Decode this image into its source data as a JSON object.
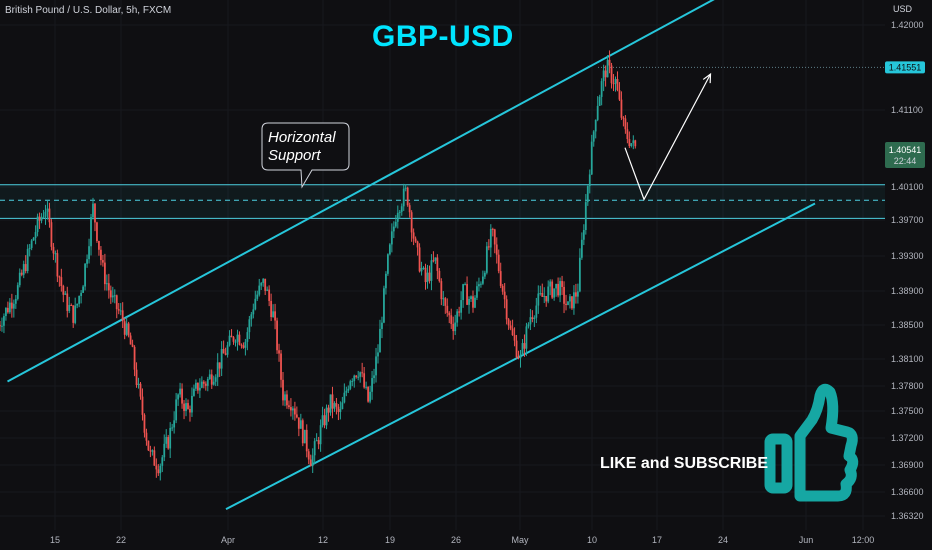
{
  "header": {
    "symbol": "British Pound / U.S. Dollar, 5h, FXCM",
    "title": "GBP-USD",
    "cta": "LIKE and SUBSCRIBE",
    "currency": "USD"
  },
  "annotation": {
    "line1": "Horizontal",
    "line2": "Support"
  },
  "thumb_icon": "thumbs-up-icon",
  "price_tags": {
    "high": "1.41551",
    "current": "1.40541",
    "timer": "22:44"
  },
  "colors": {
    "up": "#26a69a",
    "down": "#ef5350",
    "channel": "#26c6da",
    "support": "#4dd0e1",
    "background": "#0f0f12",
    "thumb": "#16a7a3",
    "title": "#00e5ff"
  },
  "chart_data": {
    "type": "candlestick",
    "symbol": "GBPUSD",
    "timeframe": "5h",
    "ylim": [
      1.3615,
      1.4225
    ],
    "y_ticks": [
      "1.42000",
      "1.41100",
      "1.40100",
      "1.39700",
      "1.39300",
      "1.38900",
      "1.38500",
      "1.38100",
      "1.37800",
      "1.37500",
      "1.37200",
      "1.36900",
      "1.36600",
      "1.36320"
    ],
    "x_ticks": [
      "15",
      "22",
      "Apr",
      "12",
      "19",
      "26",
      "May",
      "10",
      "17",
      "24",
      "Jun",
      "12:00"
    ],
    "support_zone": {
      "upper": 1.4013,
      "middle": 1.3994,
      "lower": 1.3972
    },
    "high_line": 1.41551,
    "current_price": 1.40541,
    "channel": {
      "upper": {
        "from": [
          "Mar 10",
          1.3785
        ],
        "to": [
          "May 27",
          1.4247
        ]
      },
      "lower": {
        "from": [
          "Apr 2",
          1.364
        ],
        "to": [
          "Jun 3",
          1.399
        ]
      }
    },
    "projection": [
      [
        "May 14",
        1.4061
      ],
      [
        "May 16",
        1.3995
      ],
      [
        "May 23",
        1.4148
      ]
    ],
    "price_path": [
      [
        "Mar 9",
        1.385
      ],
      [
        "Mar 11",
        1.389
      ],
      [
        "Mar 13",
        1.396
      ],
      [
        "Mar 14",
        1.3985
      ],
      [
        "Mar 15",
        1.393
      ],
      [
        "Mar 16",
        1.388
      ],
      [
        "Mar 17",
        1.386
      ],
      [
        "Mar 18",
        1.3905
      ],
      [
        "Mar 19",
        1.3985
      ],
      [
        "Mar 20",
        1.3915
      ],
      [
        "Mar 21",
        1.388
      ],
      [
        "Mar 22",
        1.386
      ],
      [
        "Mar 23",
        1.3825
      ],
      [
        "Mar 24",
        1.376
      ],
      [
        "Mar 25",
        1.37
      ],
      [
        "Mar 26",
        1.369
      ],
      [
        "Mar 27",
        1.372
      ],
      [
        "Mar 28",
        1.377
      ],
      [
        "Mar 29",
        1.375
      ],
      [
        "Mar 30",
        1.378
      ],
      [
        "Mar 31",
        1.3785
      ],
      [
        "Apr 1",
        1.38
      ],
      [
        "Apr 2",
        1.382
      ],
      [
        "Apr 3",
        1.384
      ],
      [
        "Apr 4",
        1.383
      ],
      [
        "Apr 5",
        1.388
      ],
      [
        "Apr 6",
        1.39
      ],
      [
        "Apr 7",
        1.386
      ],
      [
        "Apr 8",
        1.377
      ],
      [
        "Apr 9",
        1.376
      ],
      [
        "Apr 11",
        1.3695
      ],
      [
        "Apr 12",
        1.373
      ],
      [
        "Apr 13",
        1.376
      ],
      [
        "Apr 14",
        1.3745
      ],
      [
        "Apr 15",
        1.379
      ],
      [
        "Apr 16",
        1.38
      ],
      [
        "Apr 17",
        1.376
      ],
      [
        "Apr 18",
        1.382
      ],
      [
        "Apr 19",
        1.392
      ],
      [
        "Apr 20",
        1.3985
      ],
      [
        "Apr 21",
        1.4005
      ],
      [
        "Apr 22",
        1.3935
      ],
      [
        "Apr 23",
        1.39
      ],
      [
        "Apr 24",
        1.3925
      ],
      [
        "Apr 25",
        1.387
      ],
      [
        "Apr 26",
        1.385
      ],
      [
        "Apr 27",
        1.389
      ],
      [
        "Apr 28",
        1.3875
      ],
      [
        "Apr 29",
        1.391
      ],
      [
        "Apr 30",
        1.3955
      ],
      [
        "May 1",
        1.39
      ],
      [
        "May 2",
        1.384
      ],
      [
        "May 3",
        1.381
      ],
      [
        "May 4",
        1.386
      ],
      [
        "May 5",
        1.388
      ],
      [
        "May 6",
        1.389
      ],
      [
        "May 7",
        1.3895
      ],
      [
        "May 8",
        1.387
      ],
      [
        "May 9",
        1.389
      ],
      [
        "May 10",
        1.4005
      ],
      [
        "May 11",
        1.4115
      ],
      [
        "May 12",
        1.4155
      ],
      [
        "May 13",
        1.414
      ],
      [
        "May 14",
        1.408
      ],
      [
        "May 15",
        1.4061
      ]
    ]
  }
}
